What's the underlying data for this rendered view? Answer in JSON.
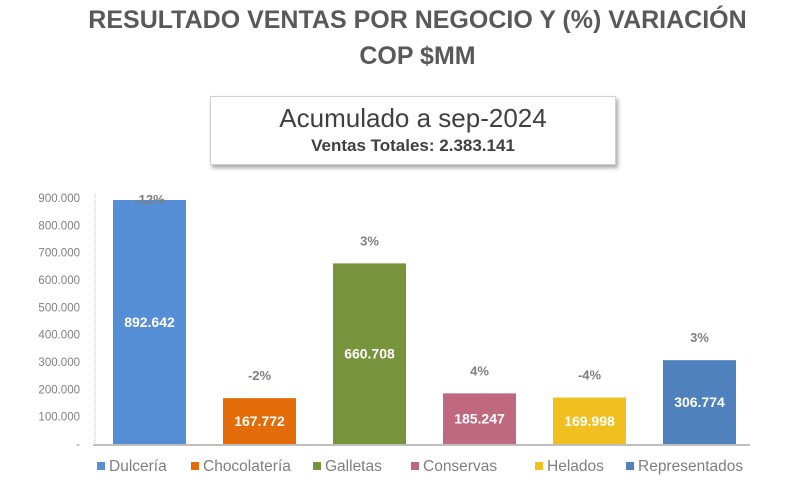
{
  "chart_data": {
    "type": "bar",
    "title": "RESULTADO VENTAS POR NEGOCIO Y (%) VARIACIÓN",
    "subtitle": "COP $MM",
    "box_title": "Acumulado a sep-2024",
    "box_subtitle": "Ventas Totales: 2.383.141",
    "categories": [
      "Dulcería",
      "Chocolatería",
      "Galletas",
      "Conservas",
      "Helados",
      "Representados"
    ],
    "values": [
      892642,
      167772,
      660708,
      185247,
      169998,
      306774
    ],
    "value_labels": [
      "892.642",
      "167.772",
      "660.708",
      "185.247",
      "169.998",
      "306.774"
    ],
    "variation_labels": [
      "-12%",
      "-2%",
      "3%",
      "4%",
      "-4%",
      "3%"
    ],
    "colors": [
      "#558ed5",
      "#e36c09",
      "#77933c",
      "#c0687f",
      "#f0c020",
      "#4f81bd"
    ],
    "ylim": [
      0,
      900000
    ],
    "yticks": [
      0,
      100000,
      200000,
      300000,
      400000,
      500000,
      600000,
      700000,
      800000,
      900000
    ],
    "ytick_labels": [
      "-",
      "100.000",
      "200.000",
      "300.000",
      "400.000",
      "500.000",
      "600.000",
      "700.000",
      "800.000",
      "900.000"
    ],
    "legend_position": "bottom",
    "xlabel": "",
    "ylabel": ""
  }
}
